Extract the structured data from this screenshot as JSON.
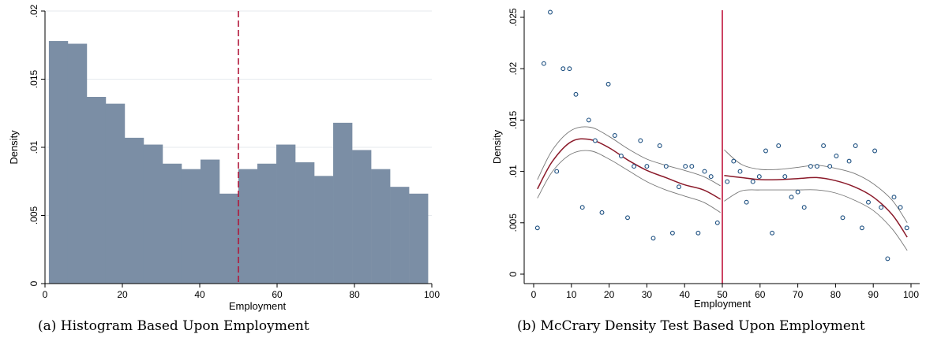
{
  "chart_data": [
    {
      "type": "bar",
      "subtype": "histogram",
      "caption": "(a) Histogram Based Upon Employment",
      "xlabel": "Employment",
      "ylabel": "Density",
      "xlim": [
        0,
        100
      ],
      "ylim": [
        0,
        0.02
      ],
      "xticks": [
        "0",
        "20",
        "40",
        "60",
        "80",
        "100"
      ],
      "yticks": [
        "0",
        ".005",
        ".01",
        ".015",
        ".02"
      ],
      "bin_edges": [
        1,
        5.9,
        10.8,
        15.7,
        20.6,
        25.5,
        30.4,
        35.3,
        40.2,
        45.1,
        50,
        54.9,
        59.8,
        64.7,
        69.6,
        74.5,
        79.4,
        84.3,
        89.2,
        94.1,
        99
      ],
      "values": [
        0.0178,
        0.0176,
        0.0137,
        0.0132,
        0.0107,
        0.0102,
        0.0088,
        0.0084,
        0.0091,
        0.0066,
        0.0084,
        0.0088,
        0.0102,
        0.0089,
        0.0079,
        0.0118,
        0.0098,
        0.0084,
        0.0071,
        0.0066
      ],
      "cutoff": 50,
      "bar_color": "#7b8ea5",
      "cutoff_color": "#b0173a",
      "grid": true
    },
    {
      "type": "scatter",
      "caption": "(b) McCrary Density Test Based Upon Employment",
      "xlabel": "Employment",
      "ylabel": "Density",
      "xlim": [
        0,
        100
      ],
      "ylim": [
        0,
        0.025
      ],
      "xticks": [
        "0",
        "10",
        "20",
        "30",
        "40",
        "50",
        "60",
        "70",
        "80",
        "90",
        "100"
      ],
      "yticks": [
        "0",
        ".005",
        ".01",
        ".015",
        ".02",
        ".025"
      ],
      "points": [
        [
          1,
          0.0045
        ],
        [
          2.7,
          0.0205
        ],
        [
          4.4,
          0.0255
        ],
        [
          6.1,
          0.01
        ],
        [
          7.8,
          0.02
        ],
        [
          9.5,
          0.02
        ],
        [
          11.2,
          0.0175
        ],
        [
          12.9,
          0.0065
        ],
        [
          14.6,
          0.015
        ],
        [
          16.3,
          0.013
        ],
        [
          18.1,
          0.006
        ],
        [
          19.8,
          0.0185
        ],
        [
          21.5,
          0.0135
        ],
        [
          23.2,
          0.0115
        ],
        [
          24.9,
          0.0055
        ],
        [
          26.6,
          0.0105
        ],
        [
          28.3,
          0.013
        ],
        [
          30,
          0.0105
        ],
        [
          31.7,
          0.0035
        ],
        [
          33.4,
          0.0125
        ],
        [
          35.1,
          0.0105
        ],
        [
          36.8,
          0.004
        ],
        [
          38.5,
          0.0085
        ],
        [
          40.2,
          0.0105
        ],
        [
          41.9,
          0.0105
        ],
        [
          43.6,
          0.004
        ],
        [
          45.3,
          0.01
        ],
        [
          47,
          0.0095
        ],
        [
          48.7,
          0.005
        ],
        [
          51.3,
          0.009
        ],
        [
          53,
          0.011
        ],
        [
          54.7,
          0.01
        ],
        [
          56.4,
          0.007
        ],
        [
          58.1,
          0.009
        ],
        [
          59.8,
          0.0095
        ],
        [
          61.5,
          0.012
        ],
        [
          63.2,
          0.004
        ],
        [
          64.9,
          0.0125
        ],
        [
          66.6,
          0.0095
        ],
        [
          68.3,
          0.0075
        ],
        [
          70,
          0.008
        ],
        [
          71.7,
          0.0065
        ],
        [
          73.4,
          0.0105
        ],
        [
          75.1,
          0.0105
        ],
        [
          76.8,
          0.0125
        ],
        [
          78.5,
          0.0105
        ],
        [
          80.2,
          0.0115
        ],
        [
          81.9,
          0.0055
        ],
        [
          83.6,
          0.011
        ],
        [
          85.3,
          0.0125
        ],
        [
          87,
          0.0045
        ],
        [
          88.7,
          0.007
        ],
        [
          90.4,
          0.012
        ],
        [
          92.1,
          0.0065
        ],
        [
          93.8,
          0.0015
        ],
        [
          95.5,
          0.0075
        ],
        [
          97.2,
          0.0065
        ],
        [
          98.9,
          0.0045
        ]
      ],
      "fit_left": [
        [
          1,
          0.0083
        ],
        [
          5,
          0.011
        ],
        [
          10,
          0.0129
        ],
        [
          15,
          0.0131
        ],
        [
          20,
          0.0123
        ],
        [
          25,
          0.0111
        ],
        [
          30,
          0.0101
        ],
        [
          35,
          0.0094
        ],
        [
          40,
          0.0087
        ],
        [
          45,
          0.0082
        ],
        [
          49.5,
          0.0073
        ]
      ],
      "ci_left_upper": [
        [
          1,
          0.0092
        ],
        [
          5,
          0.0121
        ],
        [
          10,
          0.014
        ],
        [
          15,
          0.0143
        ],
        [
          20,
          0.0134
        ],
        [
          25,
          0.0122
        ],
        [
          30,
          0.0112
        ],
        [
          35,
          0.0106
        ],
        [
          40,
          0.0101
        ],
        [
          45,
          0.0095
        ],
        [
          49.5,
          0.0086
        ]
      ],
      "ci_left_lower": [
        [
          1,
          0.0074
        ],
        [
          5,
          0.01
        ],
        [
          10,
          0.0117
        ],
        [
          15,
          0.012
        ],
        [
          20,
          0.0112
        ],
        [
          25,
          0.0101
        ],
        [
          30,
          0.009
        ],
        [
          35,
          0.0082
        ],
        [
          40,
          0.0076
        ],
        [
          45,
          0.007
        ],
        [
          49.5,
          0.006
        ]
      ],
      "fit_right": [
        [
          50.5,
          0.0096
        ],
        [
          55,
          0.0094
        ],
        [
          60,
          0.0092
        ],
        [
          65,
          0.0092
        ],
        [
          70,
          0.0093
        ],
        [
          75,
          0.0094
        ],
        [
          80,
          0.0091
        ],
        [
          85,
          0.0085
        ],
        [
          90,
          0.0075
        ],
        [
          95,
          0.0058
        ],
        [
          99,
          0.0036
        ]
      ],
      "ci_right_upper": [
        [
          50.5,
          0.0121
        ],
        [
          55,
          0.0107
        ],
        [
          60,
          0.0102
        ],
        [
          65,
          0.0102
        ],
        [
          70,
          0.0104
        ],
        [
          75,
          0.0106
        ],
        [
          80,
          0.0103
        ],
        [
          85,
          0.0098
        ],
        [
          90,
          0.0088
        ],
        [
          95,
          0.0072
        ],
        [
          99,
          0.005
        ]
      ],
      "ci_right_lower": [
        [
          50.5,
          0.0071
        ],
        [
          55,
          0.0081
        ],
        [
          60,
          0.0082
        ],
        [
          65,
          0.0082
        ],
        [
          70,
          0.0082
        ],
        [
          75,
          0.0082
        ],
        [
          80,
          0.0079
        ],
        [
          85,
          0.0072
        ],
        [
          90,
          0.0062
        ],
        [
          95,
          0.0044
        ],
        [
          99,
          0.0023
        ]
      ],
      "cutoff": 50,
      "point_color": "#1c4f80",
      "fit_color": "#8b1a2a",
      "ci_color": "#777777",
      "cutoff_color": "#c0143c",
      "grid": false
    }
  ]
}
